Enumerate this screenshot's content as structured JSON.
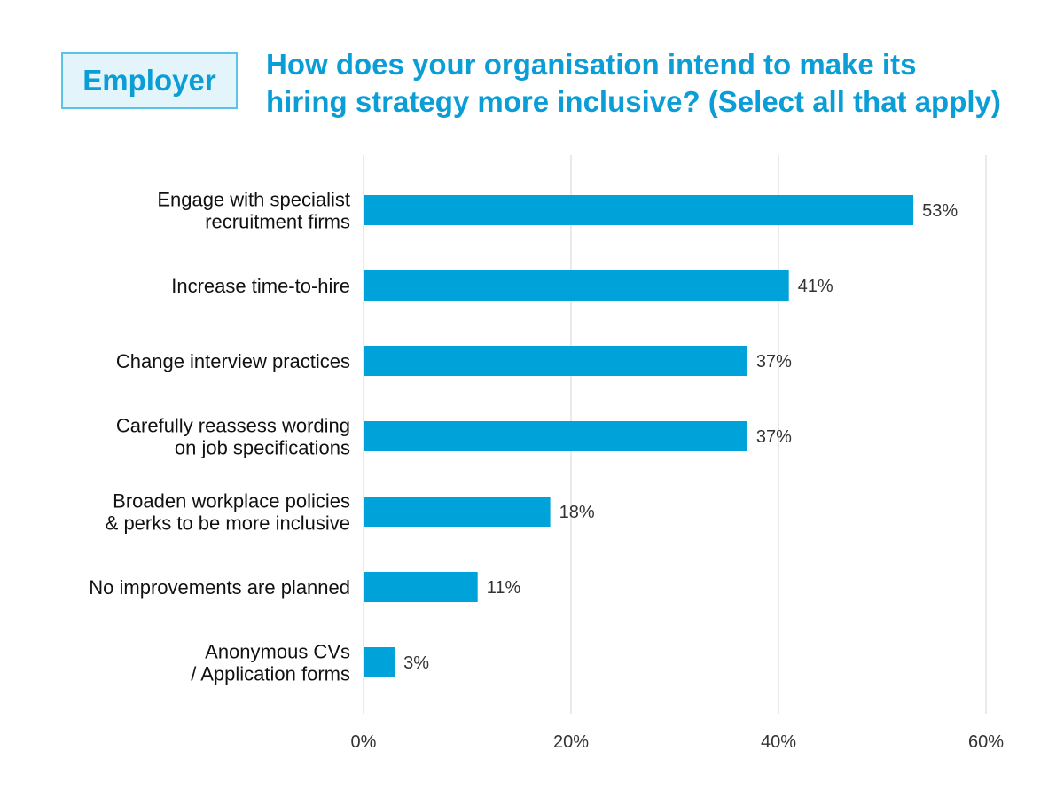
{
  "badge": {
    "label": "Employer"
  },
  "chart_data": {
    "type": "bar",
    "orientation": "horizontal",
    "title_lines": [
      "How does your organisation intend to make its",
      "hiring strategy more inclusive? (Select all that apply)"
    ],
    "categories": [
      [
        "Engage with specialist",
        "recruitment firms"
      ],
      [
        "Increase time-to-hire"
      ],
      [
        "Change interview practices"
      ],
      [
        "Carefully reassess wording",
        "on job specifications"
      ],
      [
        "Broaden workplace policies",
        "& perks to be more inclusive"
      ],
      [
        "No improvements are planned"
      ],
      [
        "Anonymous CVs",
        "/ Application forms"
      ]
    ],
    "values": [
      53,
      41,
      37,
      37,
      18,
      11,
      3
    ],
    "value_labels": [
      "53%",
      "41%",
      "37%",
      "37%",
      "18%",
      "11%",
      "3%"
    ],
    "xlim": [
      0,
      60
    ],
    "xticks": [
      0,
      20,
      40,
      60
    ],
    "xtick_labels": [
      "0%",
      "20%",
      "40%",
      "60%"
    ],
    "grid": "vertical",
    "colors": {
      "bar": "#00a3d9",
      "grid": "#e3e3e3",
      "title": "#0a9dd6"
    }
  }
}
